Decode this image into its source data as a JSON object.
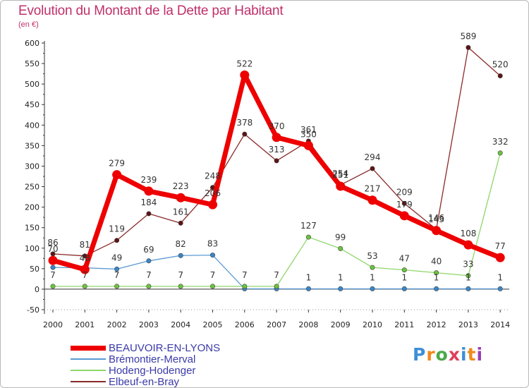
{
  "chart_data": {
    "type": "line",
    "title": "Evolution du Montant de la Dette par Habitant",
    "subtitle": "(en €)",
    "xlabel": "",
    "ylabel": "",
    "ylim": [
      -50,
      600
    ],
    "yticks": [
      "-50",
      "0",
      "50",
      "100",
      "150",
      "200",
      "250",
      "300",
      "350",
      "400",
      "450",
      "500",
      "550",
      "600"
    ],
    "ytick_values": [
      -50,
      0,
      50,
      100,
      150,
      200,
      250,
      300,
      350,
      400,
      450,
      500,
      550,
      600
    ],
    "categories": [
      "2000",
      "2001",
      "2002",
      "2003",
      "2004",
      "2005",
      "2006",
      "2007",
      "2008",
      "2009",
      "2010",
      "2011",
      "2012",
      "2013",
      "2014"
    ],
    "grid": false,
    "legend_position": "bottom-left",
    "series": [
      {
        "name": "Brémontier-Merval",
        "color": "#5b9bd5",
        "marker": "#3a85c8",
        "width": 1.3,
        "values": [
          53,
          52,
          49,
          69,
          82,
          83,
          1,
          1,
          1,
          1,
          1,
          1,
          1,
          1,
          1
        ],
        "labels": [
          null,
          null,
          "49",
          "69",
          "82",
          "83",
          null,
          null,
          "1",
          "1",
          "1",
          "1",
          "1",
          "1",
          "1"
        ]
      },
      {
        "name": "Hodeng-Hodenger",
        "color": "#8fd66a",
        "marker": "#6cc33f",
        "width": 1.3,
        "values": [
          7,
          7,
          7,
          7,
          7,
          7,
          7,
          7,
          127,
          99,
          53,
          47,
          40,
          33,
          332
        ],
        "labels": [
          "7",
          "7",
          "7",
          "7",
          "7",
          "7",
          "7",
          "7",
          "127",
          "99",
          "53",
          "47",
          "40",
          "33",
          "332"
        ]
      },
      {
        "name": "Elbeuf-en-Bray",
        "color": "#8b2a2a",
        "marker": "#5c1414",
        "width": 1.3,
        "values": [
          86,
          81,
          119,
          184,
          161,
          248,
          378,
          313,
          361,
          254,
          294,
          209,
          146,
          589,
          520
        ],
        "labels": [
          "86",
          "81",
          "119",
          "184",
          "161",
          "248",
          "378",
          "313",
          "361",
          "254",
          "294",
          "209",
          "146",
          "589",
          "520"
        ]
      },
      {
        "name": "BEAUVOIR-EN-LYONS",
        "color": "#ee0000",
        "marker": "#ee0000",
        "width": 7,
        "values": [
          70,
          48,
          279,
          239,
          223,
          206,
          522,
          370,
          350,
          251,
          217,
          179,
          143,
          108,
          77
        ],
        "labels": [
          "70",
          "48",
          "279",
          "239",
          "223",
          "206",
          "522",
          "370",
          "350",
          "251",
          "217",
          "179",
          "143",
          "108",
          "77"
        ]
      }
    ]
  },
  "legend": [
    {
      "name": "BEAUVOIR-EN-LYONS",
      "color": "#ee0000",
      "height": 7
    },
    {
      "name": "Brémontier-Merval",
      "color": "#5b9bd5",
      "height": 2
    },
    {
      "name": "Hodeng-Hodenger",
      "color": "#8fd66a",
      "height": 2
    },
    {
      "name": "Elbeuf-en-Bray",
      "color": "#8b2a2a",
      "height": 2
    }
  ],
  "logo": {
    "letters": [
      "P",
      "r",
      "o",
      "x",
      "i",
      "t",
      "i"
    ],
    "colors": [
      "#3d8fd6",
      "#f08a1c",
      "#4aa84a",
      "#e0405a",
      "#3d8fd6",
      "#f08a1c",
      "#9a3fb0"
    ]
  }
}
